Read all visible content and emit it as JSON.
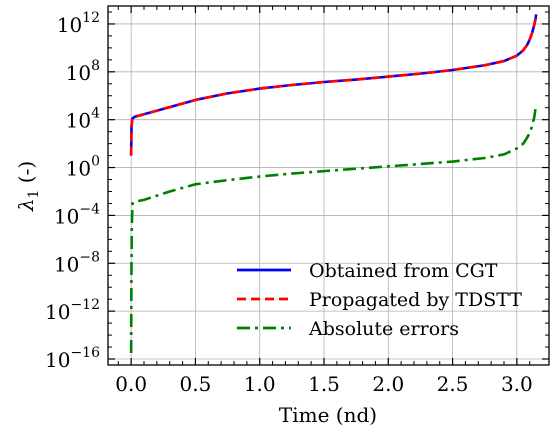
{
  "chart_data": {
    "type": "line",
    "xlabel": "Time (nd)",
    "ylabel_symbol": "λ",
    "ylabel_subscript": "1",
    "ylabel_unit": " (-)",
    "xlim": [
      -0.18,
      3.25
    ],
    "ylog_lim": [
      -16.5,
      13.5
    ],
    "y_scale": "log",
    "grid": true,
    "legend_position": "lower-right",
    "x_ticks": [
      0.0,
      0.5,
      1.0,
      1.5,
      2.0,
      2.5,
      3.0
    ],
    "x_tick_labels": [
      "0.0",
      "0.5",
      "1.0",
      "1.5",
      "2.0",
      "2.5",
      "3.0"
    ],
    "y_tick_exponents": [
      -16,
      -12,
      -8,
      -4,
      0,
      4,
      8,
      12
    ],
    "y_tick_labels": [
      "10",
      "10",
      "10",
      "10",
      "10",
      "10",
      "10",
      "10"
    ],
    "y_tick_sup_labels": [
      "−16",
      "−12",
      "−8",
      "−4",
      "0",
      "4",
      "8",
      "12"
    ],
    "series": [
      {
        "name": "Obtained from CGT",
        "color": "#0000ff",
        "style": "solid",
        "x": [
          0.0,
          0.003,
          0.01,
          0.03,
          0.1,
          0.3,
          0.5,
          0.75,
          1.0,
          1.25,
          1.5,
          1.75,
          2.0,
          2.25,
          2.5,
          2.75,
          2.9,
          3.0,
          3.05,
          3.08,
          3.1,
          3.12,
          3.135,
          3.145,
          3.15
        ],
        "log10_y": [
          1.0,
          3.5,
          4.1,
          4.25,
          4.45,
          5.05,
          5.65,
          6.2,
          6.6,
          6.9,
          7.15,
          7.35,
          7.6,
          7.85,
          8.15,
          8.55,
          8.9,
          9.35,
          9.8,
          10.25,
          10.7,
          11.3,
          11.9,
          12.4,
          12.8
        ]
      },
      {
        "name": "Propagated by TDSTT",
        "color": "#ff0000",
        "style": "dashed",
        "x": [
          0.0,
          0.003,
          0.01,
          0.03,
          0.1,
          0.3,
          0.5,
          0.75,
          1.0,
          1.25,
          1.5,
          1.75,
          2.0,
          2.25,
          2.5,
          2.75,
          2.9,
          3.0,
          3.05,
          3.08,
          3.1,
          3.12,
          3.135,
          3.145,
          3.15
        ],
        "log10_y": [
          1.0,
          3.5,
          4.1,
          4.25,
          4.45,
          5.05,
          5.65,
          6.2,
          6.6,
          6.9,
          7.15,
          7.35,
          7.6,
          7.85,
          8.15,
          8.55,
          8.9,
          9.35,
          9.8,
          10.25,
          10.7,
          11.3,
          11.9,
          12.4,
          12.8
        ]
      },
      {
        "name": "Absolute errors",
        "color": "#008000",
        "style": "dashdot",
        "x": [
          0.0,
          0.002,
          0.005,
          0.01,
          0.03,
          0.1,
          0.3,
          0.5,
          0.75,
          1.0,
          1.25,
          1.5,
          1.75,
          2.0,
          2.25,
          2.5,
          2.75,
          2.9,
          3.0,
          3.05,
          3.08,
          3.1,
          3.12,
          3.135,
          3.145,
          3.15
        ],
        "log10_y": [
          -15.5,
          -9.0,
          -5.0,
          -3.0,
          -2.85,
          -2.7,
          -2.0,
          -1.4,
          -1.05,
          -0.75,
          -0.5,
          -0.3,
          -0.1,
          0.1,
          0.3,
          0.5,
          0.8,
          1.1,
          1.6,
          2.0,
          2.5,
          2.9,
          3.5,
          4.2,
          4.9,
          5.3
        ]
      }
    ]
  }
}
